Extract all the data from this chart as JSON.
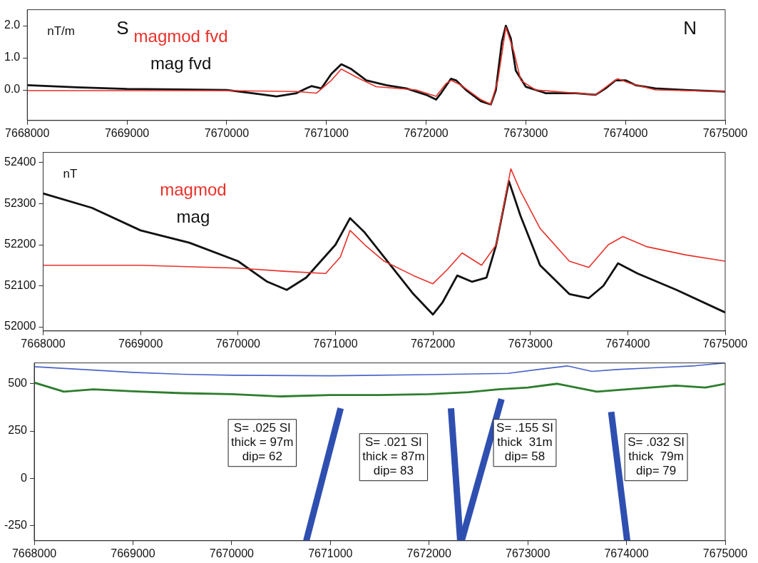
{
  "chart_data": [
    {
      "type": "line",
      "ylabel": "nT/m",
      "legend": "top left",
      "annotations": [
        "S",
        "N"
      ],
      "xlim": [
        7668000,
        7675000
      ],
      "xticks": [
        7668000,
        7669000,
        7670000,
        7671000,
        7672000,
        7673000,
        7674000,
        7675000
      ],
      "ylim": [
        -0.95,
        2.5
      ],
      "yticks": [
        {
          "value": 0,
          "label": "0.0"
        },
        {
          "value": 1,
          "label": "1.0"
        },
        {
          "value": 2,
          "label": "2.0"
        }
      ],
      "series": [
        {
          "name": "magmod fvd",
          "color": "#e8312a",
          "x": [
            7668000,
            7670000,
            7670700,
            7670900,
            7671050,
            7671150,
            7671300,
            7671500,
            7671900,
            7672100,
            7672200,
            7672250,
            7672350,
            7672550,
            7672650,
            7672720,
            7672800,
            7672880,
            7672950,
            7673100,
            7673700,
            7673850,
            7673920,
            7674050,
            7674300,
            7675000
          ],
          "values": [
            -0.02,
            -0.02,
            -0.05,
            -0.1,
            0.3,
            0.65,
            0.4,
            0.1,
            0.0,
            -0.2,
            0.2,
            0.3,
            0.15,
            -0.3,
            -0.45,
            0.3,
            1.95,
            1.2,
            0.3,
            0.0,
            -0.15,
            0.2,
            0.35,
            0.2,
            0.0,
            -0.05
          ]
        },
        {
          "name": "mag fvd",
          "color": "#111111",
          "x": [
            7668000,
            7668500,
            7669000,
            7670000,
            7670300,
            7670500,
            7670700,
            7670800,
            7670850,
            7670950,
            7671050,
            7671150,
            7671250,
            7671400,
            7671600,
            7671800,
            7672000,
            7672100,
            7672150,
            7672250,
            7672300,
            7672400,
            7672550,
            7672650,
            7672700,
            7672760,
            7672800,
            7672850,
            7672900,
            7673000,
            7673200,
            7673500,
            7673700,
            7673800,
            7673900,
            7674000,
            7674100,
            7674300,
            7674600,
            7675000
          ],
          "values": [
            0.15,
            0.08,
            0.03,
            0.0,
            -0.12,
            -0.2,
            -0.1,
            0.05,
            0.12,
            0.05,
            0.5,
            0.8,
            0.65,
            0.3,
            0.15,
            0.05,
            -0.15,
            -0.3,
            -0.1,
            0.35,
            0.3,
            0.0,
            -0.35,
            -0.45,
            0.0,
            1.5,
            2.0,
            1.6,
            0.6,
            0.1,
            -0.1,
            -0.1,
            -0.15,
            0.05,
            0.3,
            0.3,
            0.15,
            0.05,
            0.0,
            -0.05
          ]
        }
      ]
    },
    {
      "type": "line",
      "ylabel": "nT",
      "legend": "top left",
      "xlim": [
        7668000,
        7675000
      ],
      "xticks": [
        7668000,
        7669000,
        7670000,
        7671000,
        7672000,
        7673000,
        7674000,
        7675000
      ],
      "ylim": [
        51990,
        52425
      ],
      "yticks": [
        52000,
        52100,
        52200,
        52300,
        52400
      ],
      "series": [
        {
          "name": "magmod",
          "color": "#e8312a",
          "x": [
            7668000,
            7669000,
            7670000,
            7670500,
            7670900,
            7671050,
            7671150,
            7671300,
            7671500,
            7671800,
            7672000,
            7672150,
            7672300,
            7672500,
            7672650,
            7672800,
            7672900,
            7673100,
            7673400,
            7673600,
            7673800,
            7673950,
            7674200,
            7674600,
            7675000
          ],
          "values": [
            52150,
            52150,
            52143,
            52135,
            52130,
            52170,
            52235,
            52200,
            52160,
            52125,
            52105,
            52140,
            52180,
            52150,
            52200,
            52385,
            52330,
            52240,
            52160,
            52145,
            52200,
            52220,
            52195,
            52175,
            52160
          ]
        },
        {
          "name": "mag",
          "color": "#111111",
          "x": [
            7668000,
            7668500,
            7669000,
            7669500,
            7670000,
            7670300,
            7670500,
            7670700,
            7670850,
            7671000,
            7671150,
            7671300,
            7671500,
            7671800,
            7672000,
            7672100,
            7672250,
            7672400,
            7672550,
            7672650,
            7672780,
            7672900,
            7673100,
            7673400,
            7673600,
            7673750,
            7673900,
            7674100,
            7674500,
            7675000
          ],
          "values": [
            52325,
            52290,
            52235,
            52205,
            52160,
            52110,
            52090,
            52120,
            52160,
            52200,
            52265,
            52230,
            52170,
            52080,
            52030,
            52060,
            52125,
            52110,
            52120,
            52200,
            52355,
            52270,
            52150,
            52080,
            52070,
            52100,
            52155,
            52130,
            52090,
            52035
          ]
        }
      ]
    },
    {
      "type": "line",
      "xlim": [
        7668000,
        7675000
      ],
      "xticks": [
        7668000,
        7669000,
        7670000,
        7671000,
        7672000,
        7673000,
        7674000,
        7675000
      ],
      "ylim": [
        -330,
        610
      ],
      "yticks": [
        -250,
        0,
        250,
        500
      ],
      "annotations": [
        "S= .025 SI\nthick = 97m\ndip= 62",
        "S= .021 SI\nthick = 87m\ndip= 83",
        "S= .155 SI\nthick  31m\ndip= 58",
        "S= .032 SI\nthick  79m\ndip= 79"
      ],
      "series": [
        {
          "color": "#4a64c8",
          "x": [
            7668000,
            7668500,
            7669000,
            7669500,
            7670000,
            7671000,
            7672000,
            7672800,
            7673100,
            7673400,
            7673650,
            7673900,
            7674300,
            7674700,
            7675000
          ],
          "values": [
            590,
            575,
            560,
            550,
            545,
            542,
            548,
            555,
            575,
            594,
            565,
            575,
            585,
            595,
            610
          ]
        },
        {
          "color": "#2e7d2e",
          "x": [
            7668000,
            7668300,
            7668600,
            7669000,
            7669500,
            7670000,
            7670500,
            7671000,
            7671500,
            7672000,
            7672400,
            7672700,
            7673000,
            7673300,
            7673700,
            7674000,
            7674500,
            7674800,
            7675000
          ],
          "values": [
            506,
            458,
            470,
            460,
            450,
            445,
            433,
            440,
            440,
            445,
            455,
            470,
            480,
            500,
            458,
            470,
            490,
            480,
            500
          ]
        },
        {
          "color": "#2f4fb0",
          "x": [
            7671104,
            7670756
          ],
          "values": [
            370,
            -330
          ]
        },
        {
          "color": "#2f4fb0",
          "x": [
            7672222,
            7672316
          ],
          "values": [
            370,
            -330
          ]
        },
        {
          "color": "#2f4fb0",
          "x": [
            7672734,
            7672330
          ],
          "values": [
            419,
            -330
          ]
        },
        {
          "color": "#2f4fb0",
          "x": [
            7673845,
            7674007
          ],
          "values": [
            351,
            -330
          ]
        }
      ]
    }
  ]
}
